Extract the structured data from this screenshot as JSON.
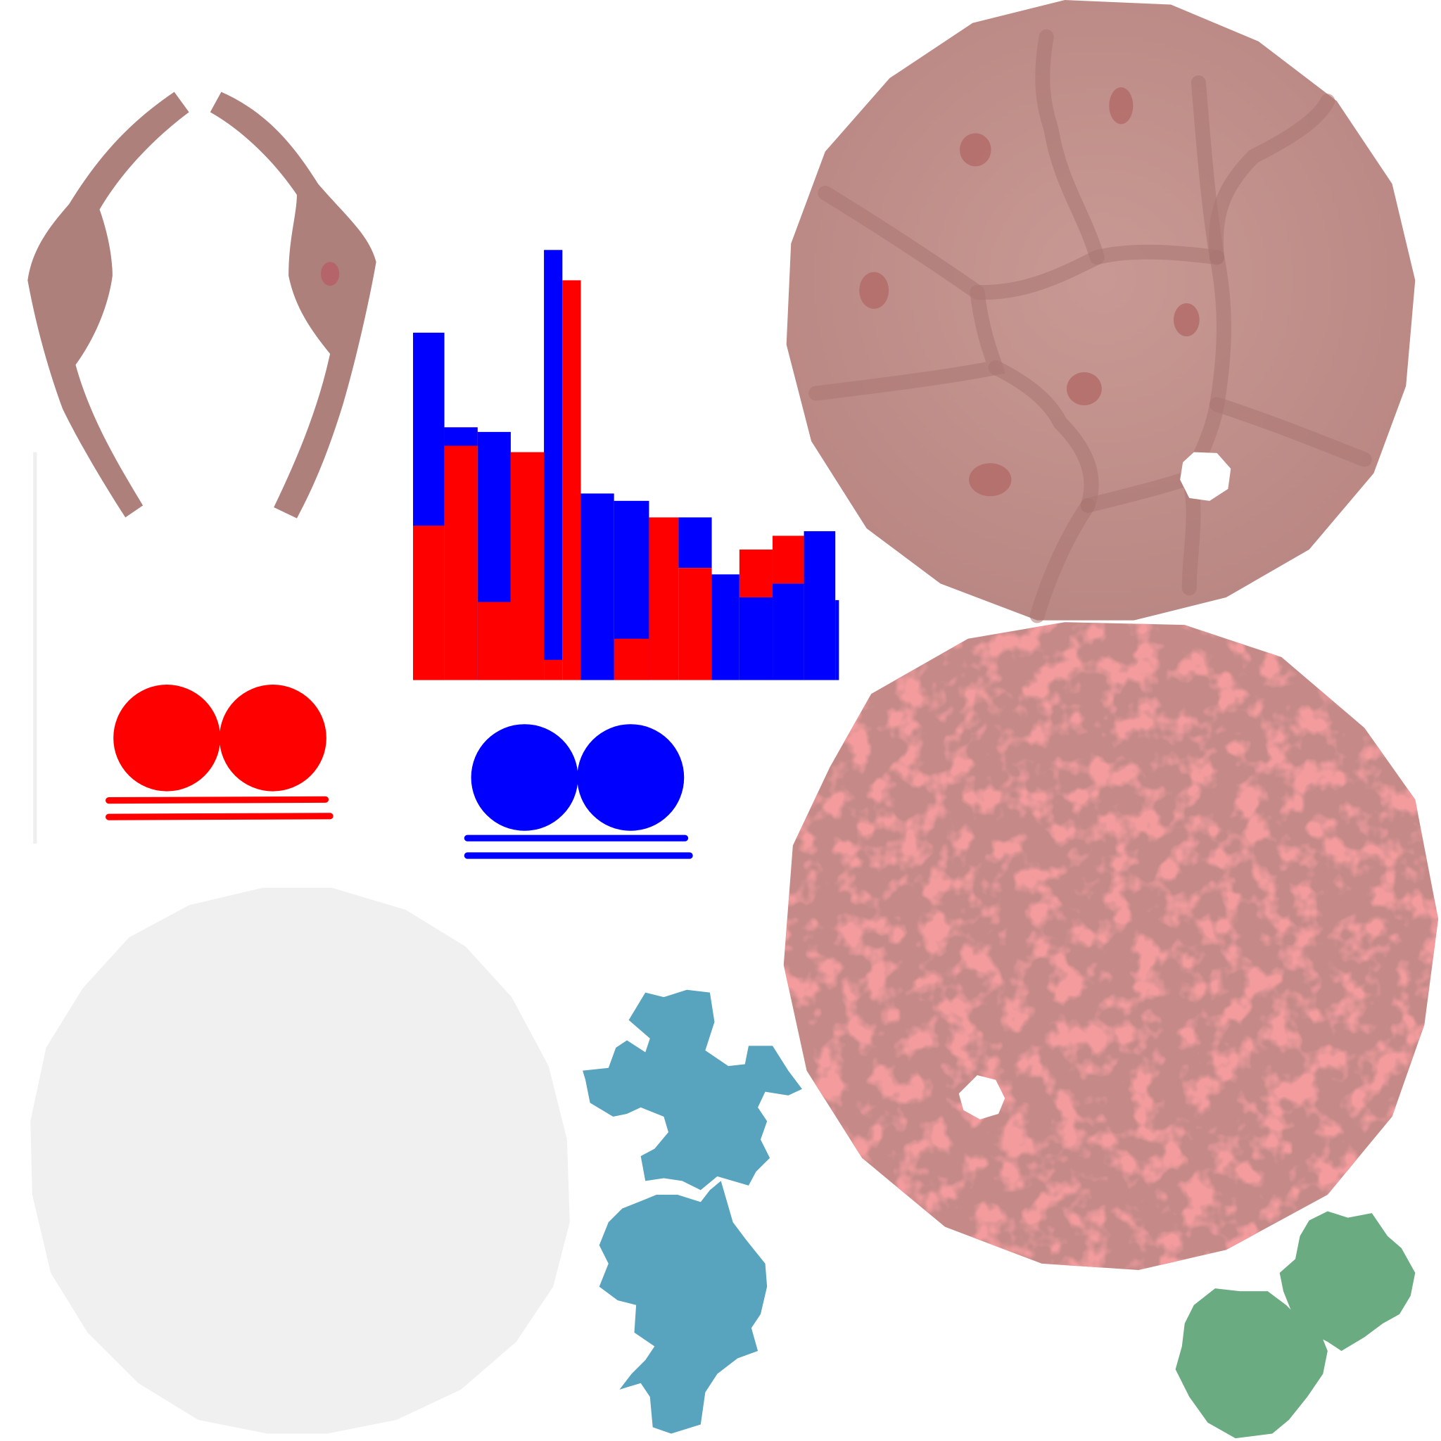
{
  "texture_atlas": {
    "background_color": "#ffffff",
    "colors": {
      "tissue_pink": "#ad807c",
      "tissue_spot": "#b5646a",
      "cell_disc": "#c0918c",
      "cell_line": "#a97672",
      "cell_nucleus": "#b36c69",
      "mottled_base": "#c58a88",
      "mottled_blotch": "#e65456",
      "signal_red": "#ff0000",
      "signal_blue": "#0000ff",
      "blank_disc": "#f0f0f0",
      "divider_line": "#efefef",
      "crystal_blue": "#58a3bd",
      "cluster_green": "#6aab82"
    },
    "islands": [
      {
        "kind": "tissue-shell-halves",
        "color_key": "tissue_pink"
      },
      {
        "kind": "red-blue-striped-block",
        "color_keys": [
          "signal_red",
          "signal_blue"
        ]
      },
      {
        "kind": "cell-pattern-disc",
        "color_key": "cell_disc"
      },
      {
        "kind": "mottled-disc",
        "color_key": "mottled_base"
      },
      {
        "kind": "red-twin-circles",
        "color_key": "signal_red"
      },
      {
        "kind": "blue-twin-circles",
        "color_key": "signal_blue"
      },
      {
        "kind": "blank-disc",
        "color_key": "blank_disc"
      },
      {
        "kind": "blue-crystal-cluster",
        "color_key": "crystal_blue"
      },
      {
        "kind": "green-sphere-pair",
        "color_key": "cluster_green"
      }
    ]
  }
}
